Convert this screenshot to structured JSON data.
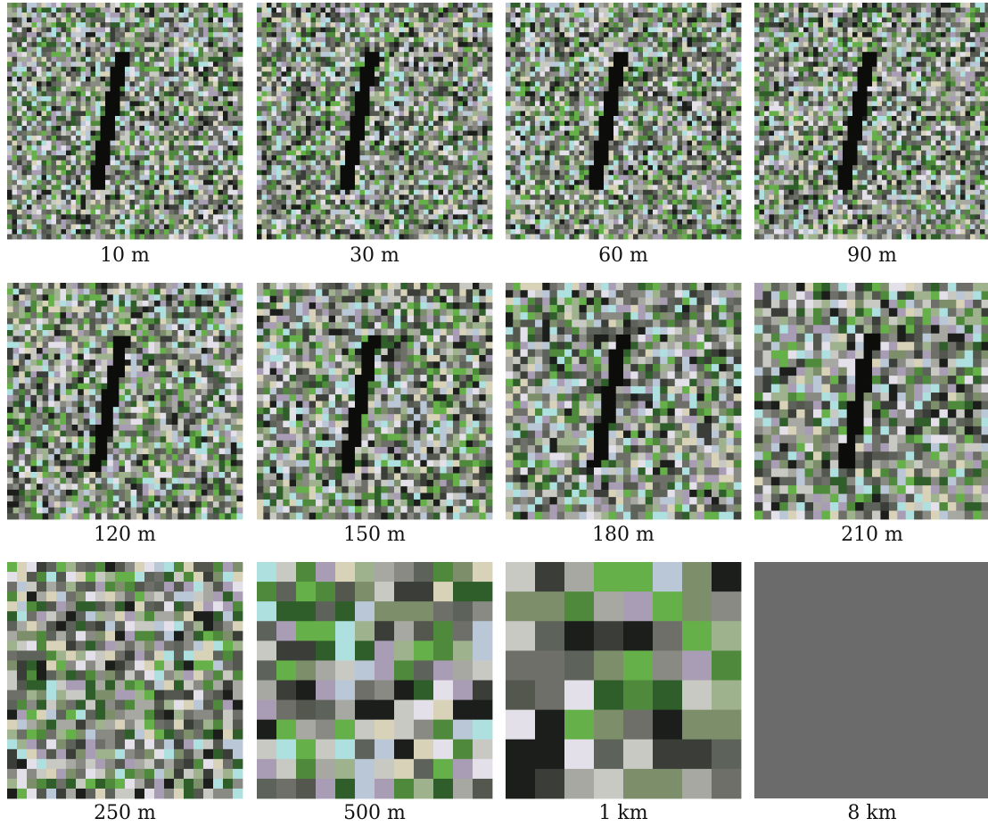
{
  "panels": [
    {
      "label": "10 m"
    },
    {
      "label": "30 m"
    },
    {
      "label": "60 m"
    },
    {
      "label": "90 m"
    },
    {
      "label": "120 m"
    },
    {
      "label": "150 m"
    },
    {
      "label": "180 m"
    },
    {
      "label": "210 m"
    },
    {
      "label": "250 m"
    },
    {
      "label": "500 m"
    },
    {
      "label": "1 km"
    },
    {
      "label": "8 km"
    }
  ]
}
